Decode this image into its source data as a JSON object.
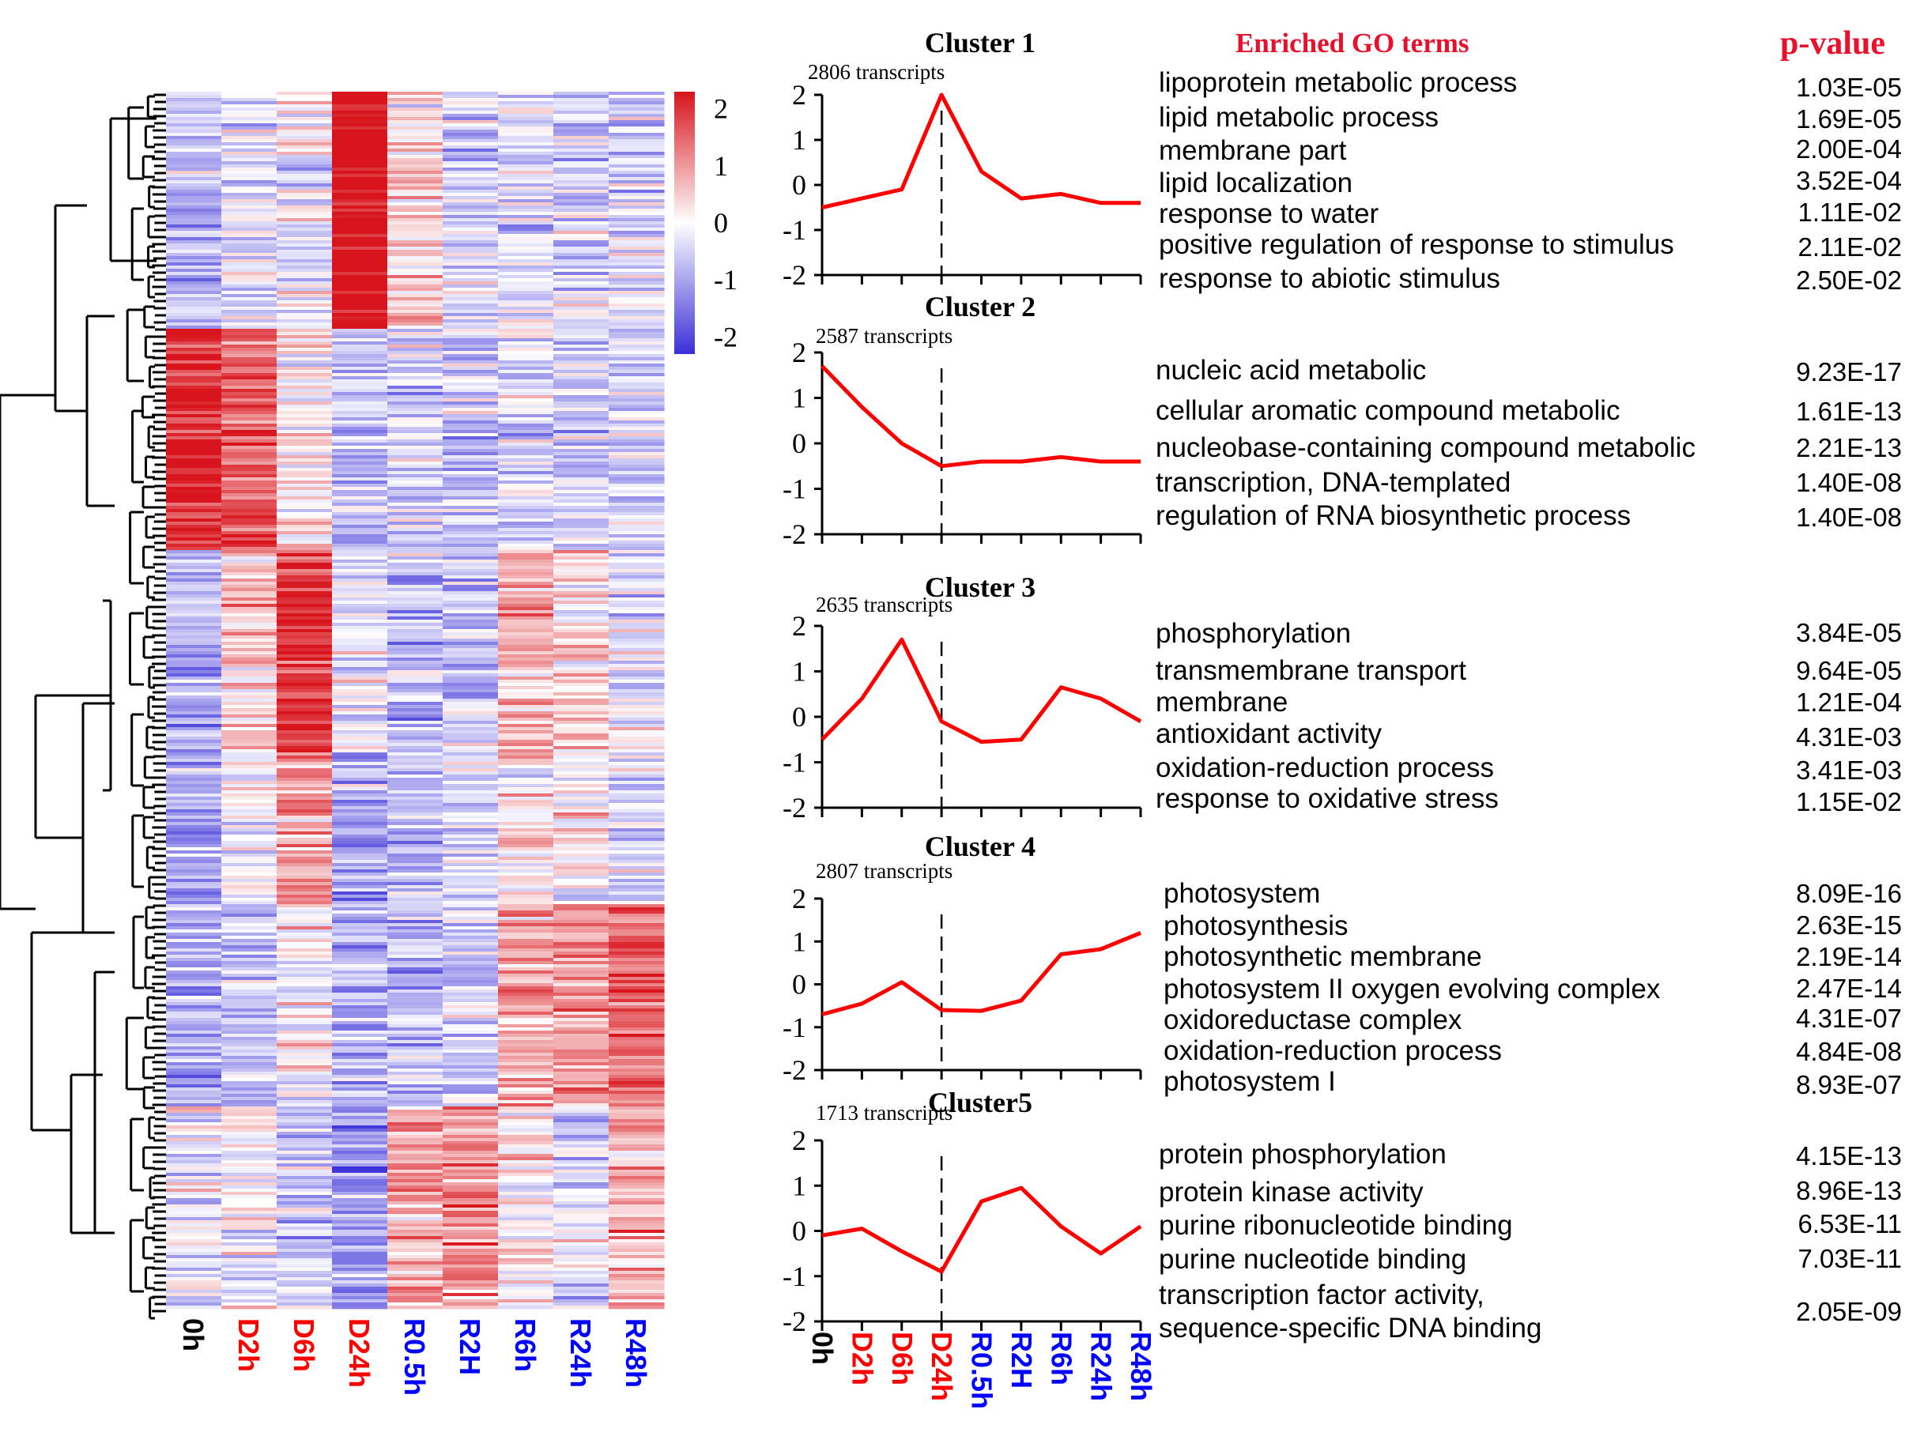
{
  "chart_data": {
    "type": "heatmap_with_cluster_profiles",
    "timepoints": [
      "0h",
      "D2h",
      "D6h",
      "D24h",
      "R0.5h",
      "R2H",
      "R6h",
      "R24h",
      "R48h"
    ],
    "timepoint_colors": [
      "#000000",
      "#ff0000",
      "#ff0000",
      "#ff0000",
      "#0000ff",
      "#0000ff",
      "#0000ff",
      "#0000ff",
      "#0000ff"
    ],
    "heatmap": {
      "colorbar_ticks": [
        "2",
        "1",
        "0",
        "-1",
        "-2"
      ],
      "color_low": "#3a2fd8",
      "color_mid": "#ffffff",
      "color_high": "#d8141c",
      "row_blocks": [
        {
          "weight": 14,
          "values": [
            -0.6,
            -0.3,
            -0.1,
            2.0,
            0.3,
            -0.3,
            -0.2,
            -0.4,
            -0.4
          ]
        },
        {
          "weight": 13,
          "values": [
            1.6,
            1.2,
            0.2,
            -0.5,
            -0.4,
            -0.4,
            -0.3,
            -0.4,
            -0.4
          ]
        },
        {
          "weight": 12,
          "values": [
            -0.6,
            0.3,
            1.6,
            -0.1,
            -0.6,
            -0.5,
            0.6,
            0.3,
            -0.1
          ]
        },
        {
          "weight": 9,
          "values": [
            -0.7,
            -0.1,
            0.8,
            -0.8,
            -0.6,
            -0.4,
            0.2,
            0.0,
            -0.3
          ]
        },
        {
          "weight": 12,
          "values": [
            -0.7,
            -0.5,
            0.0,
            -0.6,
            -0.6,
            -0.4,
            0.7,
            0.8,
            1.2
          ]
        },
        {
          "weight": 12,
          "values": [
            -0.1,
            0.0,
            -0.5,
            -0.9,
            0.6,
            0.9,
            0.1,
            -0.4,
            0.6
          ]
        }
      ]
    },
    "profiles_ylim": [
      -2,
      2
    ],
    "profiles_yticks": [
      "2",
      "1",
      "0",
      "-1",
      "-2"
    ],
    "clusters": [
      {
        "title": "Cluster 1",
        "count": "2806 transcripts",
        "values": [
          -0.5,
          -0.3,
          -0.1,
          2.0,
          0.3,
          -0.3,
          -0.2,
          -0.4,
          -0.4
        ]
      },
      {
        "title": "Cluster 2",
        "count": "2587 transcripts",
        "values": [
          1.7,
          0.8,
          0.0,
          -0.5,
          -0.4,
          -0.4,
          -0.3,
          -0.4,
          -0.4
        ]
      },
      {
        "title": "Cluster 3",
        "count": "2635 transcripts",
        "values": [
          -0.5,
          0.4,
          1.7,
          -0.1,
          -0.55,
          -0.5,
          0.65,
          0.4,
          -0.1
        ]
      },
      {
        "title": "Cluster 4",
        "count": "2807 transcripts",
        "values": [
          -0.7,
          -0.45,
          0.05,
          -0.6,
          -0.62,
          -0.38,
          0.7,
          0.82,
          1.2
        ]
      },
      {
        "title": "Cluster5",
        "count": "1713 transcripts",
        "values": [
          -0.1,
          0.05,
          -0.45,
          -0.9,
          0.65,
          0.95,
          0.1,
          -0.5,
          0.1
        ]
      }
    ],
    "go_header": "Enriched GO terms",
    "pvalue_header": "p-value",
    "go_terms": [
      [
        {
          "term": "lipoprotein metabolic process",
          "p": "1.03E-05"
        },
        {
          "term": "lipid metabolic process",
          "p": "1.69E-05"
        },
        {
          "term": "membrane part",
          "p": "2.00E-04"
        },
        {
          "term": "lipid localization",
          "p": "3.52E-04"
        },
        {
          "term": "response to water",
          "p": "1.11E-02"
        },
        {
          "term": "positive regulation of response to stimulus",
          "p": "2.11E-02"
        },
        {
          "term": "response to abiotic stimulus",
          "p": "2.50E-02"
        }
      ],
      [
        {
          "term": "nucleic acid metabolic",
          "p": "9.23E-17"
        },
        {
          "term": "cellular aromatic compound metabolic",
          "p": "1.61E-13"
        },
        {
          "term": "nucleobase-containing compound metabolic",
          "p": "2.21E-13"
        },
        {
          "term": "transcription, DNA-templated",
          "p": "1.40E-08"
        },
        {
          "term": "regulation of RNA biosynthetic process",
          "p": "1.40E-08"
        }
      ],
      [
        {
          "term": "phosphorylation",
          "p": "3.84E-05"
        },
        {
          "term": "transmembrane transport",
          "p": "9.64E-05"
        },
        {
          "term": "membrane",
          "p": "1.21E-04"
        },
        {
          "term": "antioxidant activity",
          "p": "4.31E-03"
        },
        {
          "term": "oxidation-reduction process",
          "p": "3.41E-03"
        },
        {
          "term": "response to oxidative stress",
          "p": "1.15E-02"
        }
      ],
      [
        {
          "term": "photosystem",
          "p": "8.09E-16"
        },
        {
          "term": "photosynthesis",
          "p": "2.63E-15"
        },
        {
          "term": "photosynthetic membrane",
          "p": "2.19E-14"
        },
        {
          "term": "photosystem II oxygen evolving complex",
          "p": "2.47E-14"
        },
        {
          "term": "oxidoreductase complex",
          "p": "4.31E-07"
        },
        {
          "term": "oxidation-reduction process",
          "p": "4.84E-08"
        },
        {
          "term": "photosystem I",
          "p": "8.93E-07"
        }
      ],
      [
        {
          "term": "protein phosphorylation",
          "p": "4.15E-13"
        },
        {
          "term": "protein kinase activity",
          "p": "8.96E-13"
        },
        {
          "term": "purine ribonucleotide binding",
          "p": "6.53E-11"
        },
        {
          "term": "purine nucleotide binding",
          "p": "7.03E-11"
        },
        {
          "term": "transcription factor activity,",
          "p": "2.05E-09"
        },
        {
          "term": "sequence-specific DNA binding",
          "p": ""
        }
      ]
    ]
  }
}
